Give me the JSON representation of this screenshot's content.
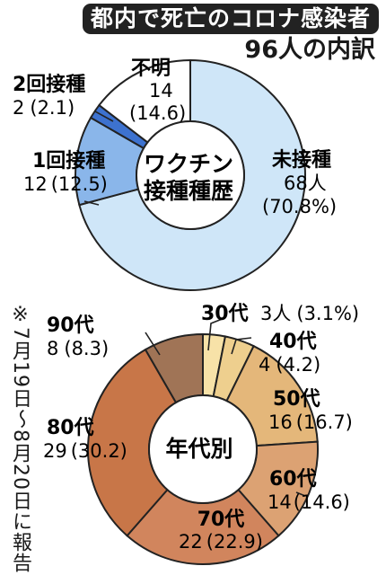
{
  "header": {
    "title": "都内で死亡のコロナ感染者",
    "subtitle": "96人の内訳"
  },
  "note": "※7月19日〜8月20日に報告",
  "chart_data": [
    {
      "type": "pie",
      "center_label": [
        "ワクチン",
        "接種種歴"
      ],
      "categories": [
        "未接種",
        "1回接種",
        "2回接種",
        "不明"
      ],
      "values": [
        68,
        12,
        2,
        14
      ],
      "percents": [
        70.8,
        12.5,
        2.1,
        14.6
      ],
      "value_labels": [
        "68人",
        "12",
        "2",
        "14"
      ],
      "percent_labels": [
        "(70.8%)",
        "(12.5)",
        "(2.1)",
        "(14.6)"
      ],
      "colors": [
        "#cfe6f8",
        "#8ab6ea",
        "#3d72cf",
        "#ffffff"
      ]
    },
    {
      "type": "pie",
      "center_label": [
        "年代別"
      ],
      "categories": [
        "30代",
        "40代",
        "50代",
        "60代",
        "70代",
        "80代",
        "90代"
      ],
      "values": [
        3,
        4,
        16,
        14,
        22,
        29,
        8
      ],
      "percents": [
        3.1,
        4.2,
        16.7,
        14.6,
        22.9,
        30.2,
        8.3
      ],
      "value_labels": [
        "3人",
        "4",
        "16",
        "14",
        "22",
        "29",
        "8"
      ],
      "percent_labels": [
        "(3.1%)",
        "(4.2)",
        "(16.7)",
        "(14.6)",
        "(22.9)",
        "(30.2)",
        "(8.3)"
      ],
      "colors": [
        "#f7e2a8",
        "#eecf8e",
        "#e4b77a",
        "#dca273",
        "#d1855d",
        "#c87648",
        "#a07456"
      ]
    }
  ]
}
